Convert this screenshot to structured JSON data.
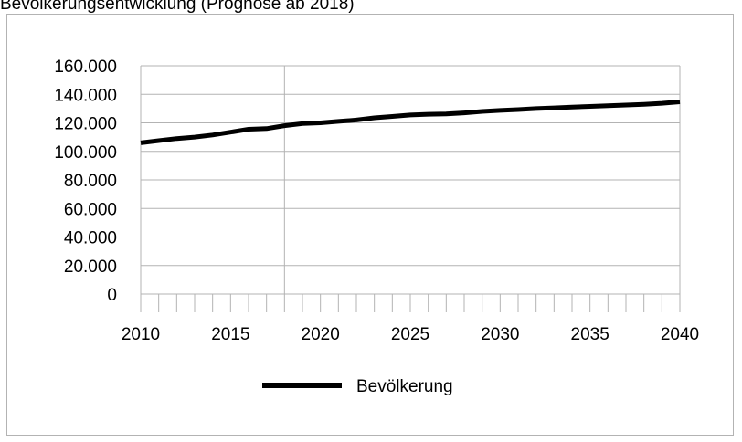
{
  "chart_data": {
    "type": "line",
    "title": "Bevölkerungsentwicklung (Prognose ab 2018)",
    "xlabel": "",
    "ylabel": "",
    "xlim": [
      2010,
      2040
    ],
    "ylim": [
      0,
      160000
    ],
    "x_ticks": [
      "2010",
      "2015",
      "2020",
      "2025",
      "2030",
      "2035",
      "2040"
    ],
    "y_ticks": [
      "0",
      "20.000",
      "40.000",
      "60.000",
      "80.000",
      "100.000",
      "120.000",
      "140.000",
      "160.000"
    ],
    "y_tick_values": [
      0,
      20000,
      40000,
      60000,
      80000,
      100000,
      120000,
      140000,
      160000
    ],
    "x_tick_values": [
      2010,
      2015,
      2020,
      2025,
      2030,
      2035,
      2040
    ],
    "marker_year": 2018,
    "grid": "horizontal",
    "legend_position": "bottom",
    "series_color": "#000000",
    "series": [
      {
        "name": "Bevölkerung",
        "x": [
          2010,
          2011,
          2012,
          2013,
          2014,
          2015,
          2016,
          2017,
          2018,
          2019,
          2020,
          2021,
          2022,
          2023,
          2024,
          2025,
          2026,
          2027,
          2028,
          2029,
          2030,
          2031,
          2032,
          2033,
          2034,
          2035,
          2036,
          2037,
          2038,
          2039,
          2040
        ],
        "values": [
          106000,
          107500,
          109000,
          110000,
          111500,
          113500,
          115500,
          116000,
          118000,
          119500,
          120000,
          121000,
          122000,
          123500,
          124500,
          125500,
          126000,
          126200,
          127000,
          128000,
          128700,
          129300,
          130000,
          130500,
          131000,
          131500,
          132000,
          132500,
          133000,
          133700,
          134700
        ]
      }
    ]
  }
}
